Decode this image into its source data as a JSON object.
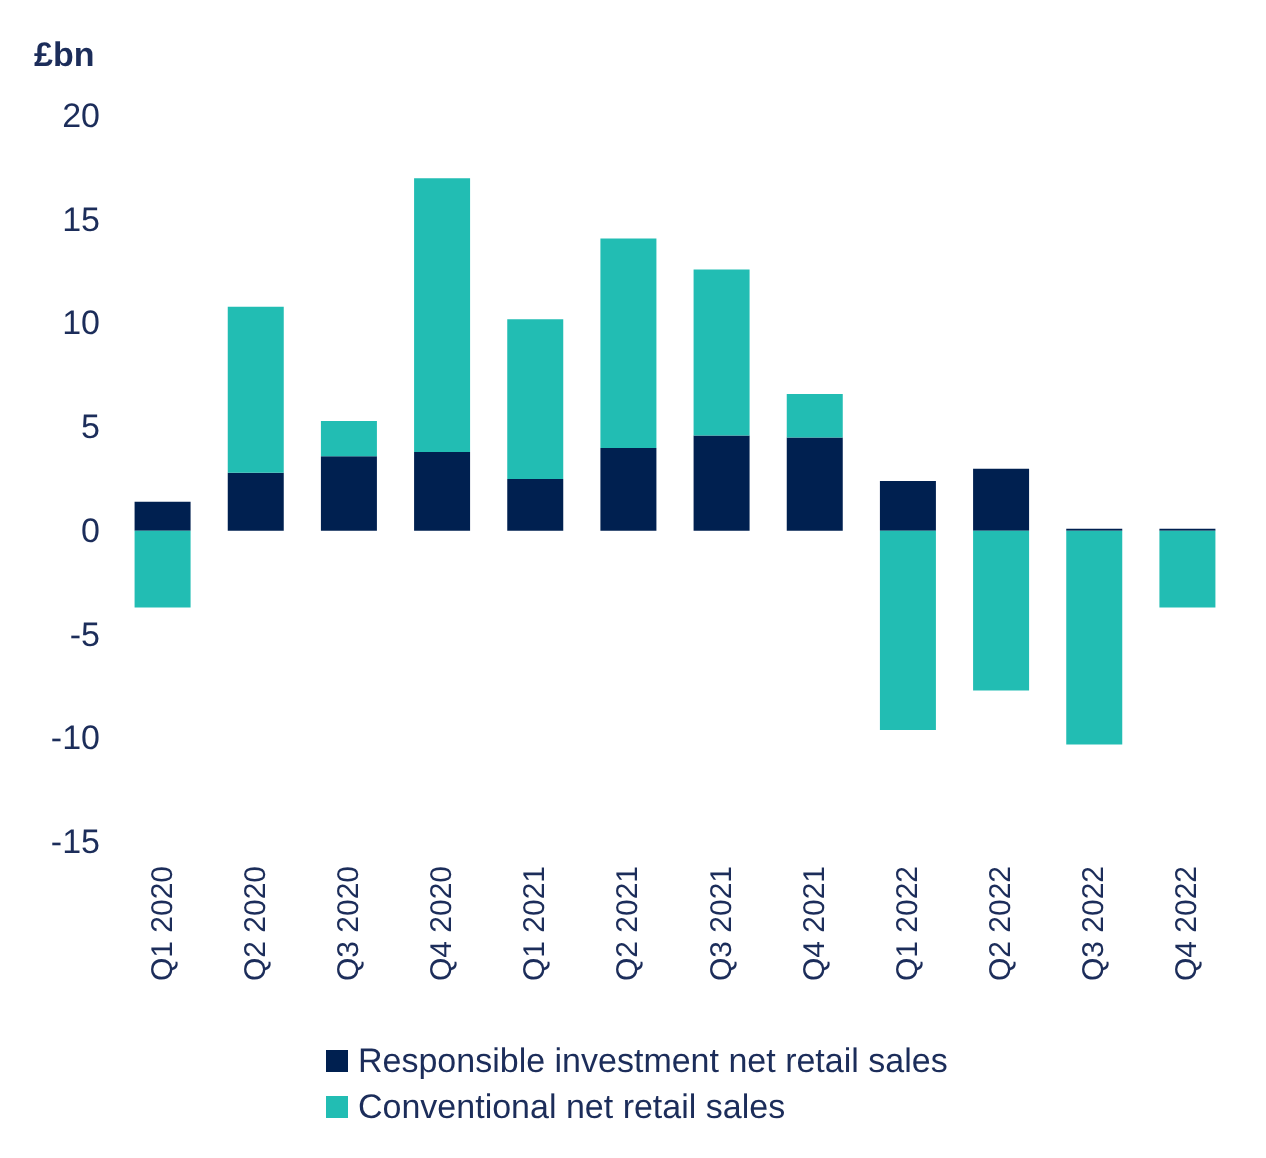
{
  "chart_data": {
    "type": "bar",
    "title": "£bn",
    "stacked": true,
    "categories": [
      "Q1 2020",
      "Q2 2020",
      "Q3 2020",
      "Q4 2020",
      "Q1 2021",
      "Q2 2021",
      "Q3 2021",
      "Q4 2021",
      "Q1 2022",
      "Q2 2022",
      "Q3 2022",
      "Q4 2022"
    ],
    "series": [
      {
        "name": "Responsible investment net retail sales",
        "color": "#002050",
        "values": [
          1.4,
          2.8,
          3.6,
          3.8,
          2.5,
          4.0,
          4.6,
          4.5,
          2.4,
          3.0,
          0.1,
          0.1
        ]
      },
      {
        "name": "Conventional net retail sales",
        "color": "#22bdb3",
        "values": [
          -3.7,
          8.0,
          1.7,
          13.2,
          7.7,
          10.1,
          8.0,
          2.1,
          -9.6,
          -7.7,
          -10.3,
          -3.7
        ]
      }
    ],
    "ylim": [
      -15,
      20
    ],
    "yticks": [
      -15,
      -10,
      -5,
      0,
      5,
      10,
      15,
      20
    ],
    "grid": false,
    "legend": "bottom"
  }
}
